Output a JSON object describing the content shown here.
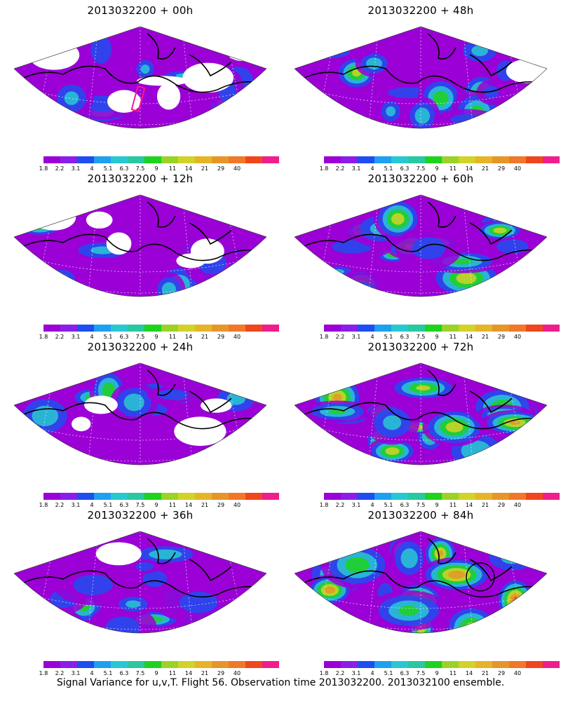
{
  "panels": [
    {
      "title": "2013032200 + 00h",
      "intensity": 0.1,
      "blank": 0.55,
      "seed": 3,
      "highlight_box": true,
      "circle": false
    },
    {
      "title": "2013032200 + 48h",
      "intensity": 0.45,
      "blank": 0.06,
      "seed": 11,
      "highlight_box": false,
      "circle": false
    },
    {
      "title": "2013032200 + 12h",
      "intensity": 0.18,
      "blank": 0.4,
      "seed": 5,
      "highlight_box": false,
      "circle": false
    },
    {
      "title": "2013032200 + 60h",
      "intensity": 0.55,
      "blank": 0.0,
      "seed": 17,
      "highlight_box": false,
      "circle": false
    },
    {
      "title": "2013032200 + 24h",
      "intensity": 0.25,
      "blank": 0.25,
      "seed": 7,
      "highlight_box": false,
      "circle": false
    },
    {
      "title": "2013032200 + 72h",
      "intensity": 0.68,
      "blank": 0.0,
      "seed": 23,
      "highlight_box": false,
      "circle": false
    },
    {
      "title": "2013032200 + 36h",
      "intensity": 0.33,
      "blank": 0.1,
      "seed": 9,
      "highlight_box": false,
      "circle": false
    },
    {
      "title": "2013032200 + 84h",
      "intensity": 0.8,
      "blank": 0.0,
      "seed": 29,
      "highlight_box": false,
      "circle": true
    }
  ],
  "colorbar": {
    "colors": [
      "#9b00d6",
      "#8a1ee8",
      "#1e4ef0",
      "#1ea0f0",
      "#28c8d2",
      "#28c8a0",
      "#1ed21e",
      "#9bd228",
      "#d2d228",
      "#e6b428",
      "#e69628",
      "#f07828",
      "#f0461e",
      "#f01e8c"
    ],
    "labels": [
      "1.8",
      "2.2",
      "3.1",
      "4",
      "5.1",
      "6.3",
      "7.5",
      "9",
      "11",
      "14",
      "21",
      "29",
      "40"
    ]
  },
  "footer": "Signal Variance for u,v,T. Flight 56. Observation time 2013032200. 2013032100 ensemble."
}
